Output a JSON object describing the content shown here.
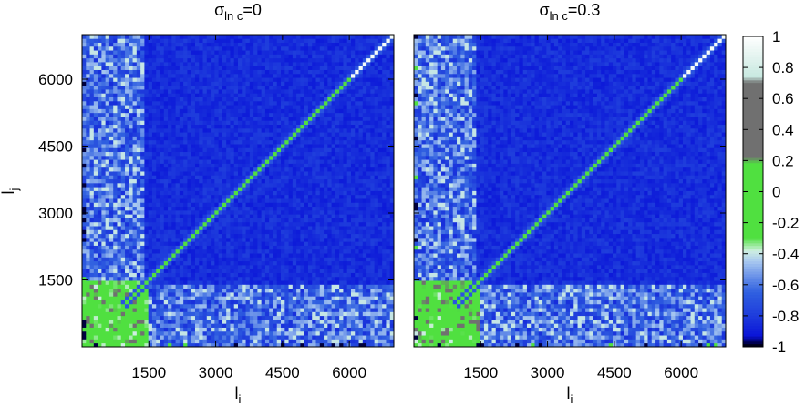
{
  "chart_data": [
    {
      "type": "heatmap",
      "title": "σ",
      "title_subscript": "ln c",
      "title_suffix": "=0",
      "xlabel": "l",
      "xlabel_subscript": "i",
      "ylabel": "l",
      "ylabel_subscript": "j",
      "xlim": [
        0,
        7000
      ],
      "ylim": [
        0,
        7000
      ],
      "x_ticks": [
        1500,
        3000,
        4500,
        6000
      ],
      "y_ticks": [
        1500,
        3000,
        4500,
        6000
      ],
      "x_tick_labels": [
        "1500",
        "3000",
        "4500",
        "6000"
      ],
      "y_tick_labels": [
        "1500",
        "3000",
        "4500",
        "6000"
      ],
      "bins": 80,
      "diagonal_value": 1,
      "off_diagonal_typical": -0.85,
      "low_l_region_value": 0.05,
      "low_l_extent": 1500
    },
    {
      "type": "heatmap",
      "title": "σ",
      "title_subscript": "ln c",
      "title_suffix": "=0.3",
      "xlabel": "l",
      "xlabel_subscript": "i",
      "ylabel": "",
      "xlim": [
        0,
        7000
      ],
      "ylim": [
        0,
        7000
      ],
      "x_ticks": [
        1500,
        3000,
        4500,
        6000
      ],
      "y_ticks": [
        1500,
        3000,
        4500,
        6000
      ],
      "x_tick_labels": [
        "1500",
        "3000",
        "4500",
        "6000"
      ],
      "y_tick_labels": [],
      "bins": 80,
      "diagonal_value": 1,
      "off_diagonal_typical": -0.85,
      "low_l_region_value": 0.05,
      "low_l_extent": 1500
    }
  ],
  "colorbar": {
    "range": [
      -1,
      1
    ],
    "tick_labels": [
      "1",
      "0.8",
      "0.6",
      "0.4",
      "0.2",
      "0",
      "-0.2",
      "-0.4",
      "-0.6",
      "-0.8",
      "-1"
    ],
    "tick_values": [
      1,
      0.8,
      0.6,
      0.4,
      0.2,
      0,
      -0.2,
      -0.4,
      -0.6,
      -0.8,
      -1
    ],
    "colors": [
      {
        "v": -1.0,
        "c": "#000000"
      },
      {
        "v": -0.97,
        "c": "#000060"
      },
      {
        "v": -0.93,
        "c": "#0a14d8"
      },
      {
        "v": -0.8,
        "c": "#1e3cdc"
      },
      {
        "v": -0.65,
        "c": "#3060e0"
      },
      {
        "v": -0.55,
        "c": "#6890e8"
      },
      {
        "v": -0.45,
        "c": "#a8c8f0"
      },
      {
        "v": -0.38,
        "c": "#d0f0e0"
      },
      {
        "v": -0.3,
        "c": "#50e040"
      },
      {
        "v": 0.0,
        "c": "#50e040"
      },
      {
        "v": 0.18,
        "c": "#50e040"
      },
      {
        "v": 0.22,
        "c": "#707070"
      },
      {
        "v": 0.7,
        "c": "#707070"
      },
      {
        "v": 0.74,
        "c": "#c8e8e0"
      },
      {
        "v": 1.0,
        "c": "#ffffff"
      }
    ]
  }
}
